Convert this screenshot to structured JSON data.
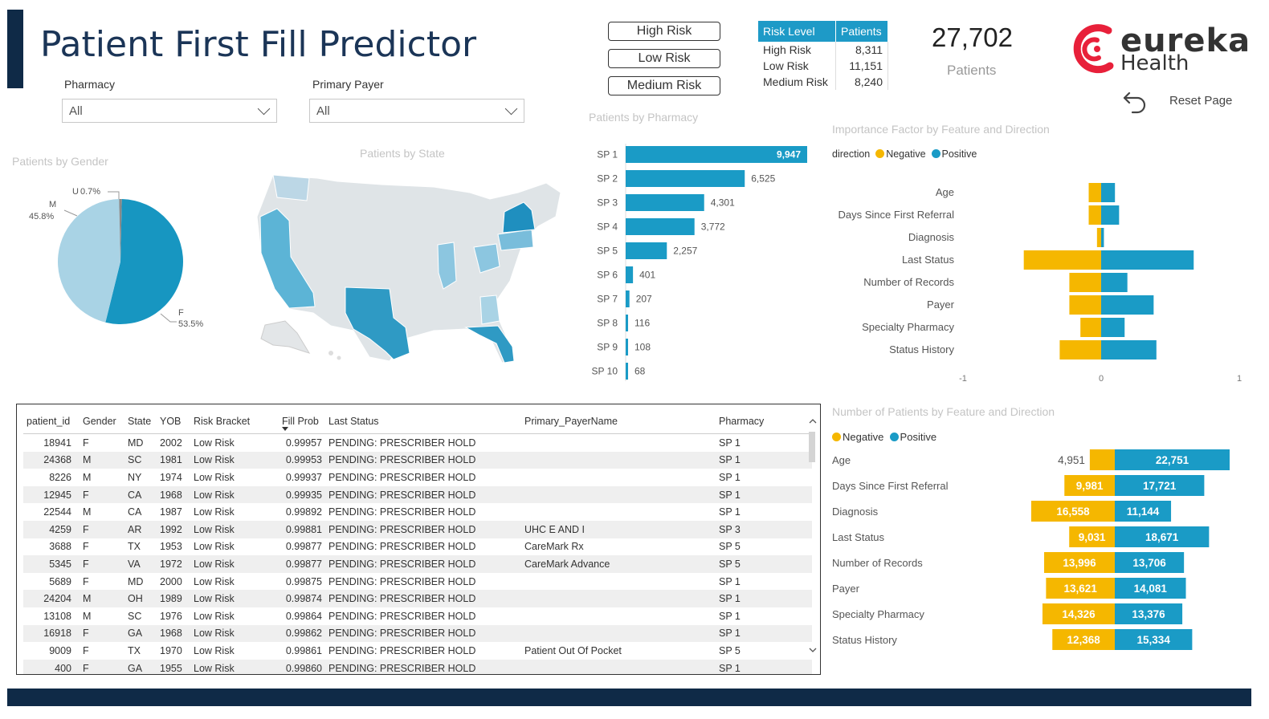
{
  "title": "Patient First Fill Predictor",
  "filters": [
    {
      "label": "Pharmacy",
      "value": "All"
    },
    {
      "label": "Primary Payer",
      "value": "All"
    }
  ],
  "risk_buttons": [
    "High Risk",
    "Low Risk",
    "Medium Risk"
  ],
  "risk_table": {
    "headers": [
      "Risk Level",
      "Patients"
    ],
    "rows": [
      [
        "High Risk",
        "8,311"
      ],
      [
        "Low Risk",
        "11,151"
      ],
      [
        "Medium Risk",
        "8,240"
      ]
    ]
  },
  "kpi": {
    "value": "27,702",
    "label": "Patients"
  },
  "logo": {
    "name": "eureka",
    "sub": "Health"
  },
  "reset_label": "Reset Page",
  "colors": {
    "positive": "#1a9bc6",
    "negative": "#f5b700",
    "dark": "#0f2a47"
  },
  "gender_chart": {
    "title": "Patients by Gender",
    "chart_data": {
      "type": "pie",
      "slices": [
        {
          "label": "F",
          "value": 53.5,
          "display": "53.5%",
          "color": "#1796c1"
        },
        {
          "label": "M",
          "value": 45.8,
          "display": "45.8%",
          "color": "#a9d3e5"
        },
        {
          "label": "U",
          "value": 0.7,
          "display": "0.7%",
          "color": "#8a8a8a"
        }
      ]
    }
  },
  "state_chart": {
    "title": "Patients by State"
  },
  "pharmacy_chart": {
    "title": "Patients by Pharmacy",
    "chart_data": {
      "type": "bar",
      "categories": [
        "SP 1",
        "SP 2",
        "SP 3",
        "SP 4",
        "SP 5",
        "SP 6",
        "SP 7",
        "SP 8",
        "SP 9",
        "SP 10"
      ],
      "values": [
        9947,
        6525,
        4301,
        3772,
        2257,
        401,
        207,
        116,
        108,
        68
      ],
      "labels": [
        "9,947",
        "6,525",
        "4,301",
        "3,772",
        "2,257",
        "401",
        "207",
        "116",
        "108",
        "68"
      ]
    }
  },
  "importance_chart": {
    "title": "Importance Factor by Feature and Direction",
    "legend_title": "direction",
    "legend": [
      "Negative",
      "Positive"
    ],
    "chart_data": {
      "type": "bar",
      "categories": [
        "Age",
        "Days Since First Referral",
        "Diagnosis",
        "Last Status",
        "Number of Records",
        "Payer",
        "Specialty Pharmacy",
        "Status History"
      ],
      "series": [
        {
          "name": "Negative",
          "values": [
            -0.09,
            -0.09,
            -0.03,
            -0.56,
            -0.23,
            -0.23,
            -0.15,
            -0.3
          ]
        },
        {
          "name": "Positive",
          "values": [
            0.1,
            0.13,
            0.02,
            0.67,
            0.19,
            0.38,
            0.17,
            0.4
          ]
        }
      ],
      "xlim": [
        -1,
        1
      ],
      "xticks": [
        "-1",
        "0",
        "1"
      ]
    }
  },
  "patients_chart": {
    "title": "Number of Patients by Feature and Direction",
    "legend": [
      "Negative",
      "Positive"
    ],
    "chart_data": {
      "type": "bar",
      "categories": [
        "Age",
        "Days Since First Referral",
        "Diagnosis",
        "Last Status",
        "Number of Records",
        "Payer",
        "Specialty Pharmacy",
        "Status History"
      ],
      "series": [
        {
          "name": "Negative",
          "values": [
            4951,
            9981,
            16558,
            9031,
            13996,
            13621,
            14326,
            12368
          ],
          "labels": [
            "4,951",
            "9,981",
            "16,558",
            "9,031",
            "13,996",
            "13,621",
            "14,326",
            "12,368"
          ]
        },
        {
          "name": "Positive",
          "values": [
            22751,
            17721,
            11144,
            18671,
            13706,
            14081,
            13376,
            15334
          ],
          "labels": [
            "22,751",
            "17,721",
            "11,144",
            "18,671",
            "13,706",
            "14,081",
            "13,376",
            "15,334"
          ]
        }
      ]
    }
  },
  "patient_table": {
    "headers": [
      "patient_id",
      "Gender",
      "State",
      "YOB",
      "Risk Bracket",
      "Fill Prob",
      "Last Status",
      "Primary_PayerName",
      "Pharmacy"
    ],
    "rows": [
      [
        "18941",
        "F",
        "MD",
        "2002",
        "Low Risk",
        "0.99957",
        "PENDING: PRESCRIBER HOLD",
        "",
        "SP 1"
      ],
      [
        "24368",
        "M",
        "SC",
        "1981",
        "Low Risk",
        "0.99953",
        "PENDING: PRESCRIBER HOLD",
        "",
        "SP 1"
      ],
      [
        "8226",
        "M",
        "NY",
        "1974",
        "Low Risk",
        "0.99937",
        "PENDING: PRESCRIBER HOLD",
        "",
        "SP 1"
      ],
      [
        "12945",
        "F",
        "CA",
        "1968",
        "Low Risk",
        "0.99935",
        "PENDING: PRESCRIBER HOLD",
        "",
        "SP 1"
      ],
      [
        "22544",
        "M",
        "CA",
        "1987",
        "Low Risk",
        "0.99892",
        "PENDING: PRESCRIBER HOLD",
        "",
        "SP 1"
      ],
      [
        "4259",
        "F",
        "AR",
        "1992",
        "Low Risk",
        "0.99881",
        "PENDING: PRESCRIBER HOLD",
        "UHC E AND I",
        "SP 3"
      ],
      [
        "3688",
        "F",
        "TX",
        "1953",
        "Low Risk",
        "0.99877",
        "PENDING: PRESCRIBER HOLD",
        "CareMark Rx",
        "SP 5"
      ],
      [
        "5345",
        "F",
        "VA",
        "1972",
        "Low Risk",
        "0.99877",
        "PENDING: PRESCRIBER HOLD",
        "CareMark Advance",
        "SP 5"
      ],
      [
        "5689",
        "F",
        "MD",
        "2000",
        "Low Risk",
        "0.99875",
        "PENDING: PRESCRIBER HOLD",
        "",
        "SP 1"
      ],
      [
        "24204",
        "M",
        "OH",
        "1989",
        "Low Risk",
        "0.99874",
        "PENDING: PRESCRIBER HOLD",
        "",
        "SP 1"
      ],
      [
        "13108",
        "M",
        "SC",
        "1976",
        "Low Risk",
        "0.99864",
        "PENDING: PRESCRIBER HOLD",
        "",
        "SP 1"
      ],
      [
        "16918",
        "F",
        "GA",
        "1968",
        "Low Risk",
        "0.99862",
        "PENDING: PRESCRIBER HOLD",
        "",
        "SP 1"
      ],
      [
        "9009",
        "F",
        "TX",
        "1970",
        "Low Risk",
        "0.99861",
        "PENDING: PRESCRIBER HOLD",
        "Patient Out Of Pocket",
        "SP 5"
      ],
      [
        "400",
        "F",
        "GA",
        "1955",
        "Low Risk",
        "0.99860",
        "PENDING: PRESCRIBER HOLD",
        "",
        "SP 1"
      ]
    ]
  }
}
